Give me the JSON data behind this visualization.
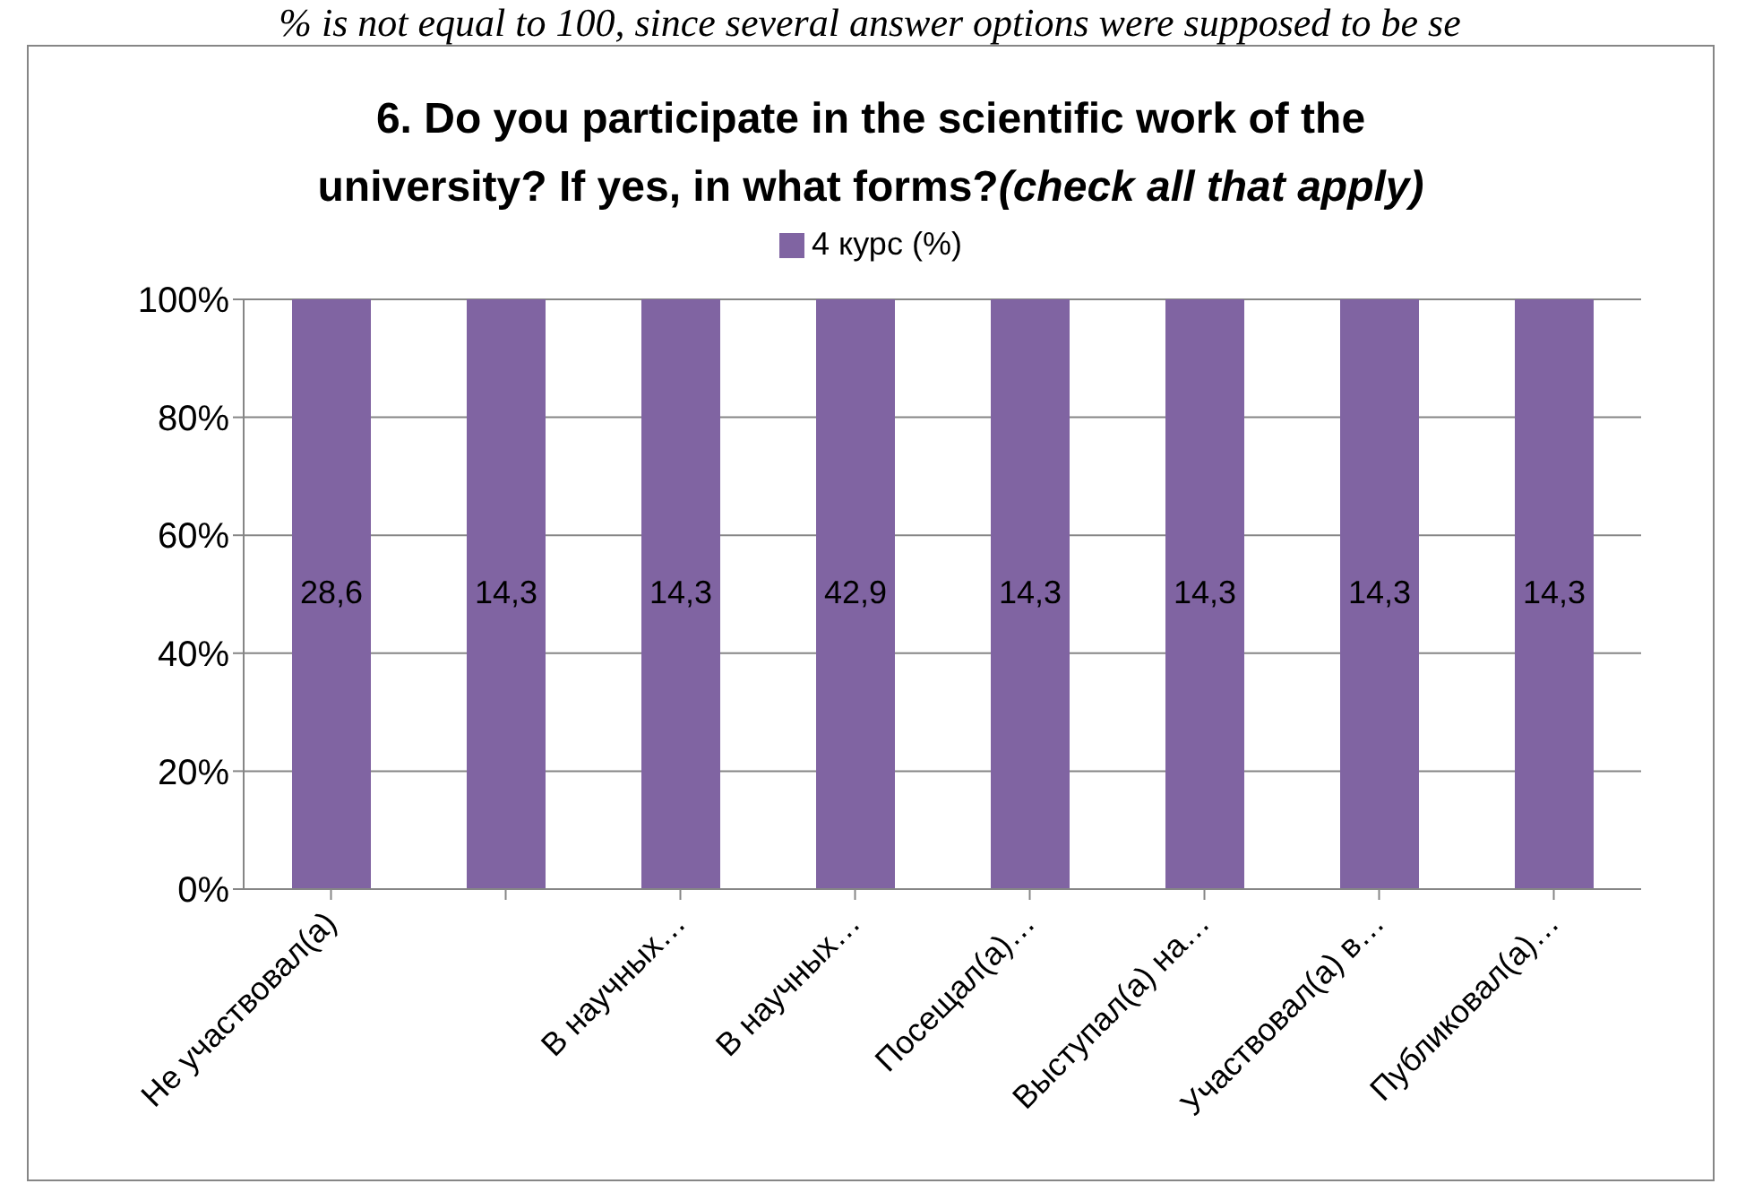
{
  "chart_data": {
    "type": "bar",
    "title": "6. Do you participate in the scientific work of the university? If yes, in what forms?(check all that apply)",
    "annotations": [
      "% is not equal to 100, since several answer options were supposed to be se",
      "28,6",
      "14,3",
      "14,3",
      "42,9",
      "14,3",
      "14,3",
      "14,3",
      "14,3"
    ],
    "categories": [
      "Не участвовал(а)",
      null,
      "В научных…",
      "В научных…",
      "Посещал(а)…",
      "Выступал(а) на…",
      "Участвовал(а) в…",
      "Публиковал(а)…"
    ],
    "series": [
      {
        "name": "4 курс (%)",
        "color": "#8064a2",
        "values": [
          100,
          100,
          100,
          100,
          100,
          100,
          100,
          100
        ]
      }
    ],
    "ylim": [
      0,
      100
    ],
    "yticks": [
      {
        "value": 0,
        "label": "0%"
      },
      {
        "value": 20,
        "label": "20%"
      },
      {
        "value": 40,
        "label": "40%"
      },
      {
        "value": 60,
        "label": "60%"
      },
      {
        "value": 80,
        "label": "80%"
      },
      {
        "value": 100,
        "label": "100%"
      }
    ],
    "grid": "y",
    "legend": "top"
  }
}
